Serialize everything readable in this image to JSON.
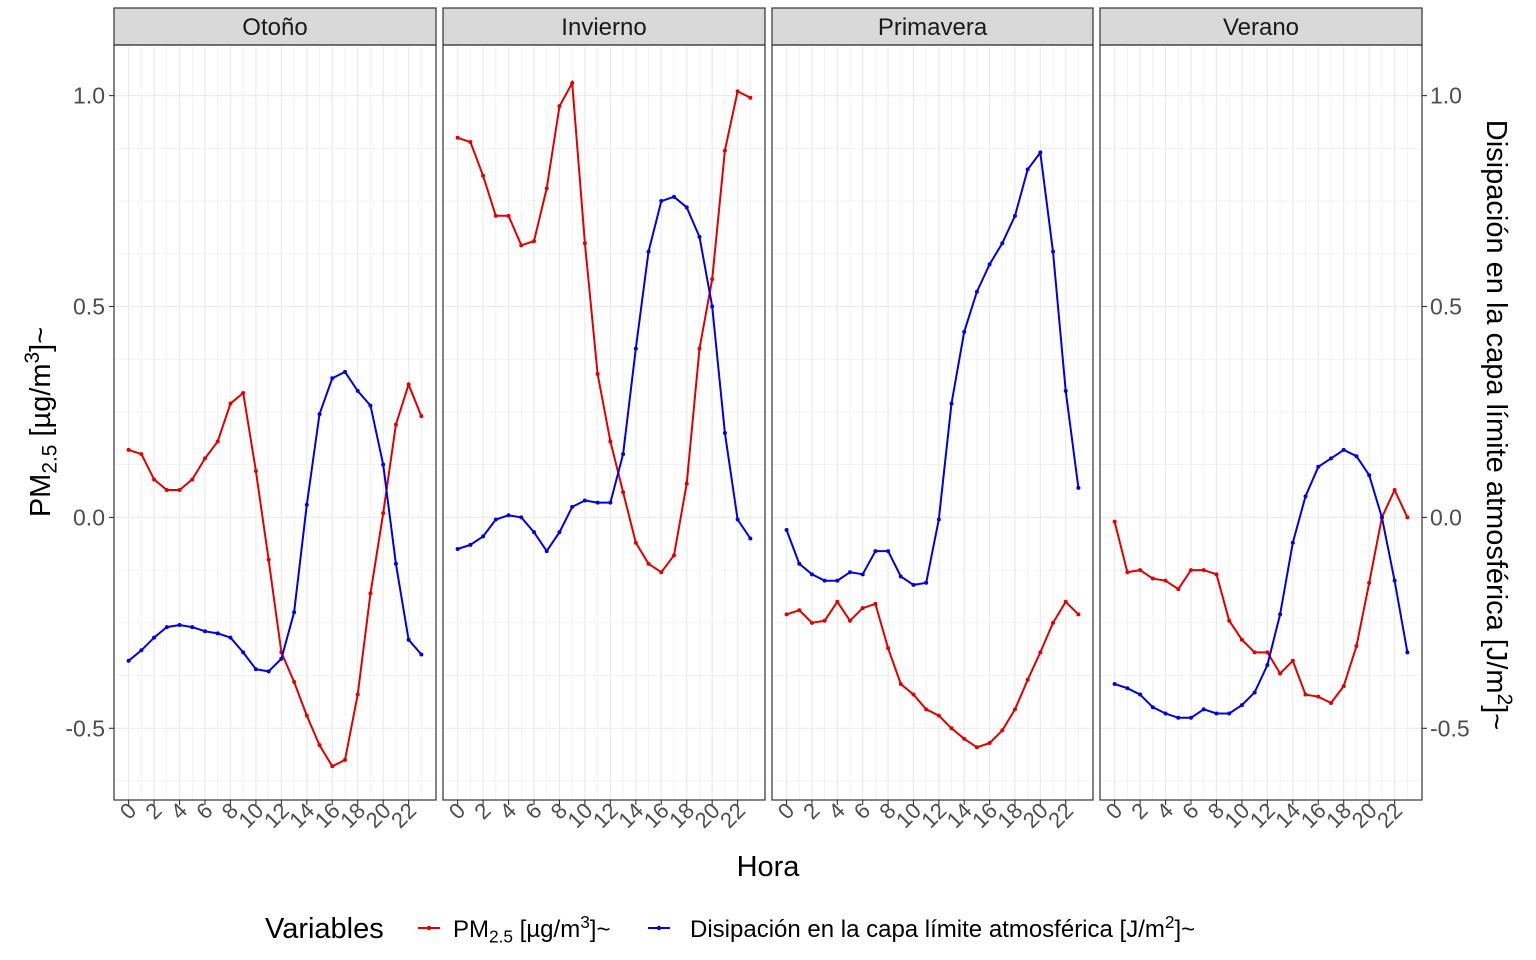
{
  "colors": {
    "pm": "#e00000",
    "dis": "#0000e0",
    "strip_fill": "#d9d9d9",
    "grid": "#ebebeb",
    "axis_text": "#4d4d4d"
  },
  "chart_data": {
    "type": "line",
    "facets": [
      "Otoño",
      "Invierno",
      "Primavera",
      "Verano"
    ],
    "x": [
      0,
      1,
      2,
      3,
      4,
      5,
      6,
      7,
      8,
      9,
      10,
      11,
      12,
      13,
      14,
      15,
      16,
      17,
      18,
      19,
      20,
      21,
      22,
      23
    ],
    "x_ticks": [
      "0",
      "2",
      "4",
      "6",
      "8",
      "10",
      "12",
      "14",
      "16",
      "18",
      "20",
      "22"
    ],
    "x_tick_values": [
      0,
      2,
      4,
      6,
      8,
      10,
      12,
      14,
      16,
      18,
      20,
      22
    ],
    "y_ticks": [
      "-0.5",
      "0.0",
      "0.5",
      "1.0"
    ],
    "y_tick_values": [
      -0.5,
      0.0,
      0.5,
      1.0
    ],
    "ylim": [
      -0.67,
      1.12
    ],
    "xlim": [
      -1.15,
      24.15
    ],
    "xlabel": "Hora",
    "ylabel": {
      "main": "PM",
      "sub": "2.5",
      "mid": " [µg/m",
      "sup": "3",
      "end": "]~"
    },
    "y2label": {
      "main": "Disipación en la capa límite atmosférica [J/m",
      "sup": "2",
      "end": "]~"
    },
    "legend": {
      "title": "Variables",
      "position": "bottom",
      "pm": {
        "main": "PM",
        "sub": "2.5",
        "mid": " [µg/m",
        "sup": "3",
        "end": "]~"
      },
      "dis": {
        "main": "Disipación en la capa límite atmosférica  [J/m",
        "sup": "2",
        "end": "]~"
      }
    },
    "series": [
      {
        "key": "pm",
        "values": [
          [
            0.16,
            0.15,
            0.09,
            0.065,
            0.065,
            0.09,
            0.14,
            0.18,
            0.27,
            0.295,
            0.11,
            -0.1,
            -0.32,
            -0.39,
            -0.47,
            -0.54,
            -0.59,
            -0.575,
            -0.42,
            -0.18,
            0.01,
            0.22,
            0.315,
            0.24
          ],
          [
            0.9,
            0.89,
            0.81,
            0.715,
            0.715,
            0.645,
            0.655,
            0.78,
            0.975,
            1.03,
            0.65,
            0.34,
            0.18,
            0.06,
            -0.06,
            -0.11,
            -0.13,
            -0.09,
            0.08,
            0.4,
            0.565,
            0.87,
            1.01,
            0.995
          ],
          [
            -0.23,
            -0.22,
            -0.25,
            -0.245,
            -0.2,
            -0.245,
            -0.215,
            -0.205,
            -0.31,
            -0.395,
            -0.42,
            -0.455,
            -0.47,
            -0.5,
            -0.525,
            -0.545,
            -0.535,
            -0.505,
            -0.455,
            -0.385,
            -0.32,
            -0.25,
            -0.2,
            -0.23
          ],
          [
            -0.01,
            -0.13,
            -0.125,
            -0.145,
            -0.15,
            -0.17,
            -0.125,
            -0.125,
            -0.135,
            -0.245,
            -0.29,
            -0.32,
            -0.32,
            -0.37,
            -0.34,
            -0.42,
            -0.425,
            -0.44,
            -0.4,
            -0.305,
            -0.155,
            0.0,
            0.065,
            0.0
          ]
        ]
      },
      {
        "key": "dis",
        "values": [
          [
            -0.34,
            -0.315,
            -0.285,
            -0.26,
            -0.255,
            -0.26,
            -0.27,
            -0.275,
            -0.285,
            -0.32,
            -0.36,
            -0.365,
            -0.335,
            -0.225,
            0.03,
            0.245,
            0.33,
            0.345,
            0.3,
            0.265,
            0.125,
            -0.11,
            -0.29,
            -0.325
          ],
          [
            -0.075,
            -0.065,
            -0.045,
            -0.005,
            0.005,
            0.0,
            -0.035,
            -0.08,
            -0.035,
            0.025,
            0.04,
            0.035,
            0.035,
            0.15,
            0.4,
            0.63,
            0.75,
            0.76,
            0.735,
            0.665,
            0.5,
            0.2,
            -0.005,
            -0.05
          ],
          [
            -0.03,
            -0.11,
            -0.135,
            -0.15,
            -0.15,
            -0.13,
            -0.135,
            -0.08,
            -0.08,
            -0.14,
            -0.16,
            -0.155,
            -0.005,
            0.27,
            0.44,
            0.535,
            0.6,
            0.65,
            0.715,
            0.825,
            0.865,
            0.63,
            0.3,
            0.07
          ],
          [
            -0.395,
            -0.405,
            -0.42,
            -0.45,
            -0.465,
            -0.475,
            -0.475,
            -0.455,
            -0.465,
            -0.465,
            -0.445,
            -0.415,
            -0.35,
            -0.23,
            -0.06,
            0.05,
            0.12,
            0.14,
            0.16,
            0.145,
            0.1,
            0.0,
            -0.15,
            -0.32
          ]
        ]
      }
    ]
  }
}
